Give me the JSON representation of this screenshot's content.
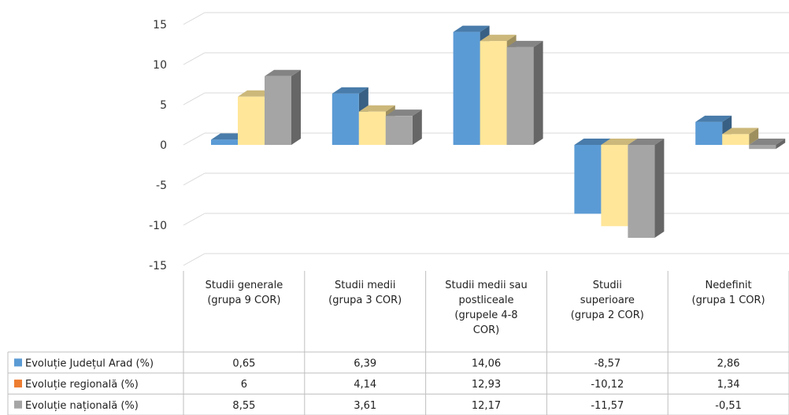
{
  "chart_data": {
    "type": "bar",
    "categories": [
      [
        "Studii generale",
        "(grupa 9 COR)"
      ],
      [
        "Studii medii",
        "(grupa 3 COR)"
      ],
      [
        "Studii medii sau",
        "postliceale",
        "(grupele 4-8",
        "COR)"
      ],
      [
        "Studii",
        "superioare",
        "(grupa 2 COR)"
      ],
      [
        "Nedefinit",
        "(grupa 1 COR)"
      ]
    ],
    "series": [
      {
        "name": "Evoluție Județul Arad (%)",
        "values": [
          0.65,
          6.39,
          14.06,
          -8.57,
          2.86
        ],
        "labels": [
          "0,65",
          "6,39",
          "14,06",
          "-8,57",
          "2,86"
        ],
        "color": "#5B9BD5",
        "legend_color": "#5B9BD5"
      },
      {
        "name": "Evoluție regională (%)",
        "values": [
          6,
          4.14,
          12.93,
          -10.12,
          1.34
        ],
        "labels": [
          "6",
          "4,14",
          "12,93",
          "-10,12",
          "1,34"
        ],
        "color": "#FFE699",
        "legend_color": "#ED7D31"
      },
      {
        "name": "Evoluție națională (%)",
        "values": [
          8.55,
          3.61,
          12.17,
          -11.57,
          -0.51
        ],
        "labels": [
          "8,55",
          "3,61",
          "12,17",
          "-11,57",
          "-0,51"
        ],
        "color": "#A5A5A5",
        "legend_color": "#A5A5A5"
      }
    ],
    "y_ticks": [
      "15",
      "10",
      "5",
      "0",
      "-5",
      "-10",
      "-15"
    ],
    "ylim": [
      -15,
      15
    ],
    "grid": true,
    "legend": "data-table"
  }
}
